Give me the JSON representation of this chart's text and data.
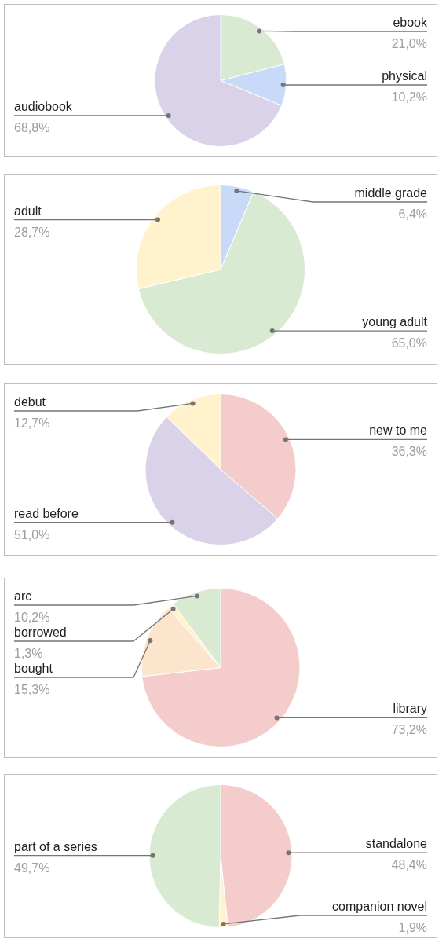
{
  "chart_data": [
    {
      "type": "pie",
      "categories": [
        "ebook",
        "physical",
        "audiobook"
      ],
      "values": [
        21.0,
        10.2,
        68.8
      ],
      "value_labels": [
        "21,0%",
        "10,2%",
        "68,8%"
      ],
      "colors": [
        "#d9ead3",
        "#c9daf8",
        "#d9d2e9"
      ]
    },
    {
      "type": "pie",
      "categories": [
        "middle grade",
        "young adult",
        "adult"
      ],
      "values": [
        6.4,
        65.0,
        28.7
      ],
      "value_labels": [
        "6,4%",
        "65,0%",
        "28,7%"
      ],
      "colors": [
        "#c9daf8",
        "#d9ead3",
        "#fff2cc"
      ]
    },
    {
      "type": "pie",
      "categories": [
        "new to me",
        "read before",
        "debut"
      ],
      "values": [
        36.3,
        51.0,
        12.7
      ],
      "value_labels": [
        "36,3%",
        "51,0%",
        "12,7%"
      ],
      "colors": [
        "#f4cccc",
        "#d9d2e9",
        "#fff2cc"
      ]
    },
    {
      "type": "pie",
      "categories": [
        "library",
        "bought",
        "borrowed",
        "arc"
      ],
      "values": [
        73.2,
        15.3,
        1.3,
        10.2
      ],
      "value_labels": [
        "73,2%",
        "15,3%",
        "1,3%",
        "10,2%"
      ],
      "colors": [
        "#f4cccc",
        "#fce5cd",
        "#fff2cc",
        "#d9ead3"
      ]
    },
    {
      "type": "pie",
      "categories": [
        "standalone",
        "companion novel",
        "part of a series"
      ],
      "values": [
        48.4,
        1.9,
        49.7
      ],
      "value_labels": [
        "48,4%",
        "1,9%",
        "49,7%"
      ],
      "colors": [
        "#f4cccc",
        "#fff2cc",
        "#d9ead3"
      ]
    }
  ]
}
